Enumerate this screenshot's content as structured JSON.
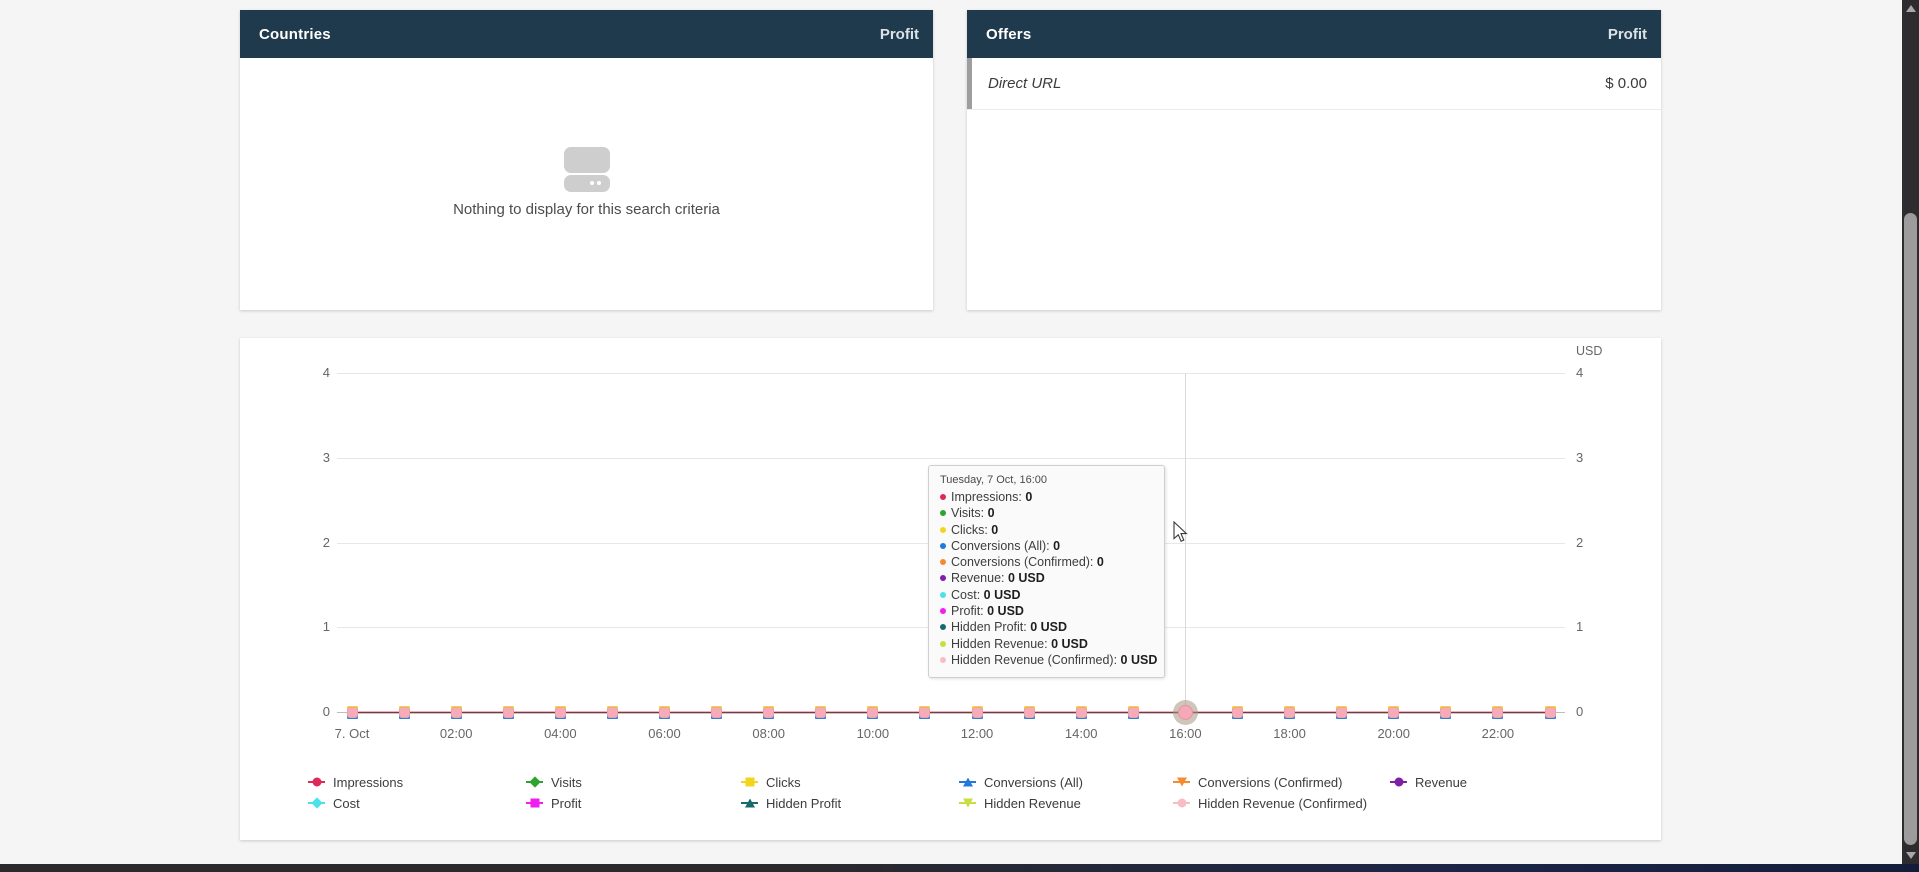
{
  "panels": {
    "countries": {
      "title": "Countries",
      "metric_header": "Profit",
      "empty_text": "Nothing to display for this search criteria"
    },
    "offers": {
      "title": "Offers",
      "metric_header": "Profit",
      "rows": [
        {
          "name": "Direct URL",
          "value": "$ 0.00"
        }
      ]
    }
  },
  "chart_data": {
    "type": "line",
    "title": "",
    "unit_label": "USD",
    "ylim": [
      0,
      4
    ],
    "yticks": [
      0,
      1,
      2,
      3,
      4
    ],
    "grid": true,
    "legend_position": "bottom",
    "x": [
      "00:00",
      "01:00",
      "02:00",
      "03:00",
      "04:00",
      "05:00",
      "06:00",
      "07:00",
      "08:00",
      "09:00",
      "10:00",
      "11:00",
      "12:00",
      "13:00",
      "14:00",
      "15:00",
      "16:00",
      "17:00",
      "18:00",
      "19:00",
      "20:00",
      "21:00",
      "22:00",
      "23:00"
    ],
    "x_tick_labels": [
      "7. Oct",
      "02:00",
      "04:00",
      "06:00",
      "08:00",
      "10:00",
      "12:00",
      "14:00",
      "16:00",
      "18:00",
      "20:00",
      "22:00"
    ],
    "hover_index": 16,
    "series": [
      {
        "name": "Impressions",
        "color": "#dc2a5a",
        "shape": "circle",
        "values": [
          0,
          0,
          0,
          0,
          0,
          0,
          0,
          0,
          0,
          0,
          0,
          0,
          0,
          0,
          0,
          0,
          0,
          0,
          0,
          0,
          0,
          0,
          0,
          0
        ]
      },
      {
        "name": "Visits",
        "color": "#2ea32f",
        "shape": "diamond",
        "values": [
          0,
          0,
          0,
          0,
          0,
          0,
          0,
          0,
          0,
          0,
          0,
          0,
          0,
          0,
          0,
          0,
          0,
          0,
          0,
          0,
          0,
          0,
          0,
          0
        ]
      },
      {
        "name": "Clicks",
        "color": "#f4d51d",
        "shape": "square",
        "values": [
          0,
          0,
          0,
          0,
          0,
          0,
          0,
          0,
          0,
          0,
          0,
          0,
          0,
          0,
          0,
          0,
          0,
          0,
          0,
          0,
          0,
          0,
          0,
          0
        ]
      },
      {
        "name": "Conversions (All)",
        "color": "#2279dd",
        "shape": "tri-up",
        "values": [
          0,
          0,
          0,
          0,
          0,
          0,
          0,
          0,
          0,
          0,
          0,
          0,
          0,
          0,
          0,
          0,
          0,
          0,
          0,
          0,
          0,
          0,
          0,
          0
        ]
      },
      {
        "name": "Conversions (Confirmed)",
        "color": "#f58b31",
        "shape": "tri-down",
        "values": [
          0,
          0,
          0,
          0,
          0,
          0,
          0,
          0,
          0,
          0,
          0,
          0,
          0,
          0,
          0,
          0,
          0,
          0,
          0,
          0,
          0,
          0,
          0,
          0
        ]
      },
      {
        "name": "Revenue",
        "color": "#7e1fa8",
        "shape": "circle",
        "values": [
          0,
          0,
          0,
          0,
          0,
          0,
          0,
          0,
          0,
          0,
          0,
          0,
          0,
          0,
          0,
          0,
          0,
          0,
          0,
          0,
          0,
          0,
          0,
          0
        ]
      },
      {
        "name": "Cost",
        "color": "#4ce1e9",
        "shape": "diamond",
        "values": [
          0,
          0,
          0,
          0,
          0,
          0,
          0,
          0,
          0,
          0,
          0,
          0,
          0,
          0,
          0,
          0,
          0,
          0,
          0,
          0,
          0,
          0,
          0,
          0
        ]
      },
      {
        "name": "Profit",
        "color": "#f01ff0",
        "shape": "square",
        "values": [
          0,
          0,
          0,
          0,
          0,
          0,
          0,
          0,
          0,
          0,
          0,
          0,
          0,
          0,
          0,
          0,
          0,
          0,
          0,
          0,
          0,
          0,
          0,
          0
        ]
      },
      {
        "name": "Hidden Profit",
        "color": "#176970",
        "shape": "tri-up",
        "values": [
          0,
          0,
          0,
          0,
          0,
          0,
          0,
          0,
          0,
          0,
          0,
          0,
          0,
          0,
          0,
          0,
          0,
          0,
          0,
          0,
          0,
          0,
          0,
          0
        ]
      },
      {
        "name": "Hidden Revenue",
        "color": "#c9df3d",
        "shape": "tri-down",
        "values": [
          0,
          0,
          0,
          0,
          0,
          0,
          0,
          0,
          0,
          0,
          0,
          0,
          0,
          0,
          0,
          0,
          0,
          0,
          0,
          0,
          0,
          0,
          0,
          0
        ]
      },
      {
        "name": "Hidden Revenue (Confirmed)",
        "color": "#f7bdc4",
        "shape": "circle",
        "values": [
          0,
          0,
          0,
          0,
          0,
          0,
          0,
          0,
          0,
          0,
          0,
          0,
          0,
          0,
          0,
          0,
          0,
          0,
          0,
          0,
          0,
          0,
          0,
          0
        ]
      }
    ]
  },
  "tooltip": {
    "title": "Tuesday, 7 Oct, 16:00",
    "items": [
      {
        "label": "Impressions",
        "value": "0",
        "color": "#dc2a5a"
      },
      {
        "label": "Visits",
        "value": "0",
        "color": "#2ea32f"
      },
      {
        "label": "Clicks",
        "value": "0",
        "color": "#f4d51d"
      },
      {
        "label": "Conversions (All)",
        "value": "0",
        "color": "#2279dd"
      },
      {
        "label": "Conversions (Confirmed)",
        "value": "0",
        "color": "#f58b31"
      },
      {
        "label": "Revenue",
        "value": "0 USD",
        "color": "#7e1fa8"
      },
      {
        "label": "Cost",
        "value": "0 USD",
        "color": "#4ce1e9"
      },
      {
        "label": "Profit",
        "value": "0 USD",
        "color": "#f01ff0"
      },
      {
        "label": "Hidden Profit",
        "value": "0 USD",
        "color": "#176970"
      },
      {
        "label": "Hidden Revenue",
        "value": "0 USD",
        "color": "#c9df3d"
      },
      {
        "label": "Hidden Revenue (Confirmed)",
        "value": "0 USD",
        "color": "#f7bdc4"
      }
    ]
  }
}
